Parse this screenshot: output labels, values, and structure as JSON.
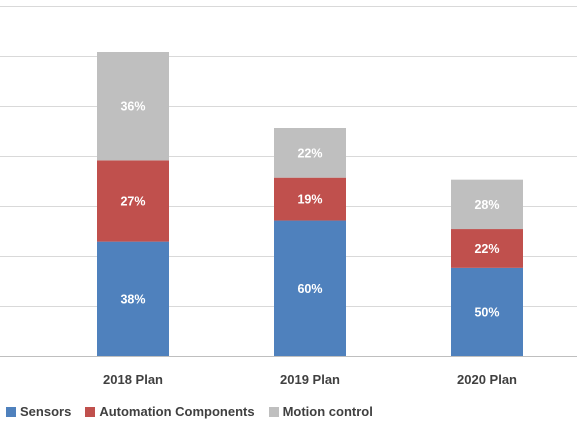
{
  "chart_data": {
    "type": "bar",
    "stacked": true,
    "categories": [
      "2018 Plan",
      "2019 Plan",
      "2020 Plan"
    ],
    "series": [
      {
        "name": "Sensors",
        "color": "#4F81BD",
        "values": [
          38,
          60,
          50
        ],
        "labels": [
          "38%",
          "60%",
          "50%"
        ]
      },
      {
        "name": "Automation Components",
        "color": "#C0504D",
        "values": [
          27,
          19,
          22
        ],
        "labels": [
          "27%",
          "19%",
          "22%"
        ]
      },
      {
        "name": "Motion control",
        "color": "#BFBFBF",
        "values": [
          36,
          22,
          28
        ],
        "labels": [
          "36%",
          "22%",
          "28%"
        ]
      }
    ],
    "totals_relative": [
      1.0,
      0.75,
      0.58
    ],
    "grid": true,
    "legend_position": "bottom-left",
    "title": "",
    "xlabel": "",
    "ylabel": ""
  }
}
